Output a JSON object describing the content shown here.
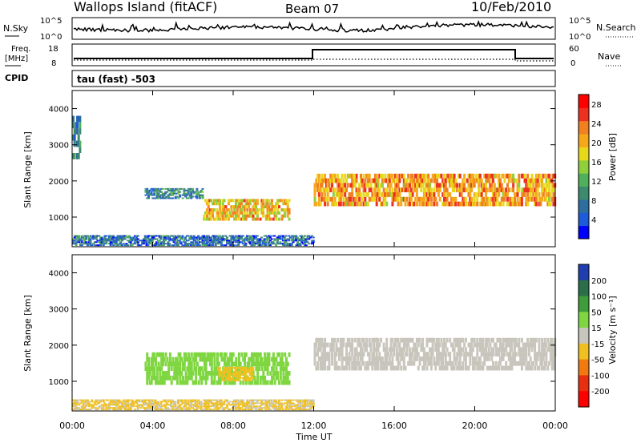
{
  "header": {
    "site": "Wallops Island (fitACF)",
    "beam": "Beam 07",
    "date": "10/Feb/2010"
  },
  "noise_panel": {
    "left_label": "N.Sky",
    "right_label": "N.Search",
    "left_ticks": [
      "10^5",
      "10^0"
    ],
    "right_ticks": [
      "10^5",
      "10^0"
    ]
  },
  "freq_panel": {
    "left_label_line1": "Freq.",
    "left_label_line2": "[MHz]",
    "right_label": "Nave",
    "left_ticks": [
      "18",
      "8"
    ],
    "right_ticks": [
      "60",
      "0"
    ]
  },
  "cpid": {
    "label": "CPID",
    "text": "tau (fast) -503"
  },
  "time_axis": {
    "label": "Time UT",
    "ticks": [
      "00:00",
      "04:00",
      "08:00",
      "12:00",
      "16:00",
      "20:00",
      "00:00"
    ]
  },
  "chart_data": [
    {
      "type": "heatmap",
      "name": "power",
      "ylabel": "Slant Range [km]",
      "ylim": [
        180,
        4500
      ],
      "y_ticks": [
        "1000",
        "2000",
        "3000",
        "4000"
      ],
      "colorbar_label": "Power [dB]",
      "colorbar_ticks": [
        "28",
        "24",
        "20",
        "16",
        "12",
        "8",
        "4"
      ],
      "colors": [
        "#0000ff",
        "#1e5bd9",
        "#2e6e9e",
        "#3d8a6e",
        "#4faf5a",
        "#8fcf3a",
        "#e8d81a",
        "#f5a81a",
        "#f08020",
        "#ee3020",
        "#ff0000"
      ],
      "echo_regions": [
        {
          "t_start": 0.0,
          "t_end": 0.4,
          "r_low": 2600,
          "r_high": 3800,
          "dB": 8
        },
        {
          "t_start": 3.6,
          "t_end": 6.5,
          "r_low": 1500,
          "r_high": 1800,
          "dB": 8
        },
        {
          "t_start": 6.5,
          "t_end": 10.8,
          "r_low": 900,
          "r_high": 1500,
          "dB": 20
        },
        {
          "t_start": 12.0,
          "t_end": 24.0,
          "r_low": 1300,
          "r_high": 2200,
          "dB": 22
        },
        {
          "t_start": 0.0,
          "t_end": 12.0,
          "r_low": 200,
          "r_high": 500,
          "dB": 6
        }
      ]
    },
    {
      "type": "heatmap",
      "name": "velocity",
      "ylabel": "Slant Range [km]",
      "ylim": [
        180,
        4500
      ],
      "y_ticks": [
        "1000",
        "2000",
        "3000",
        "4000"
      ],
      "colorbar_label": "Velocity [m s⁻¹]",
      "colorbar_ticks": [
        "200",
        "100",
        "50",
        "15",
        "-15",
        "-50",
        "-100",
        "-200"
      ],
      "colors": [
        "#1f3fb0",
        "#2b6e4a",
        "#3f9c3a",
        "#7fd640",
        "#c8c6bc",
        "#f0c020",
        "#f07a10",
        "#e83010",
        "#ff0000"
      ],
      "echo_regions": [
        {
          "t_start": 3.6,
          "t_end": 10.8,
          "r_low": 900,
          "r_high": 1800,
          "v": 30
        },
        {
          "t_start": 7.2,
          "t_end": 9.0,
          "r_low": 1000,
          "r_high": 1400,
          "v": -30
        },
        {
          "t_start": 12.0,
          "t_end": 24.0,
          "r_low": 1300,
          "r_high": 2200,
          "v": 0
        },
        {
          "t_start": 0.0,
          "t_end": 12.0,
          "r_low": 200,
          "r_high": 500,
          "v": -20
        }
      ]
    }
  ]
}
